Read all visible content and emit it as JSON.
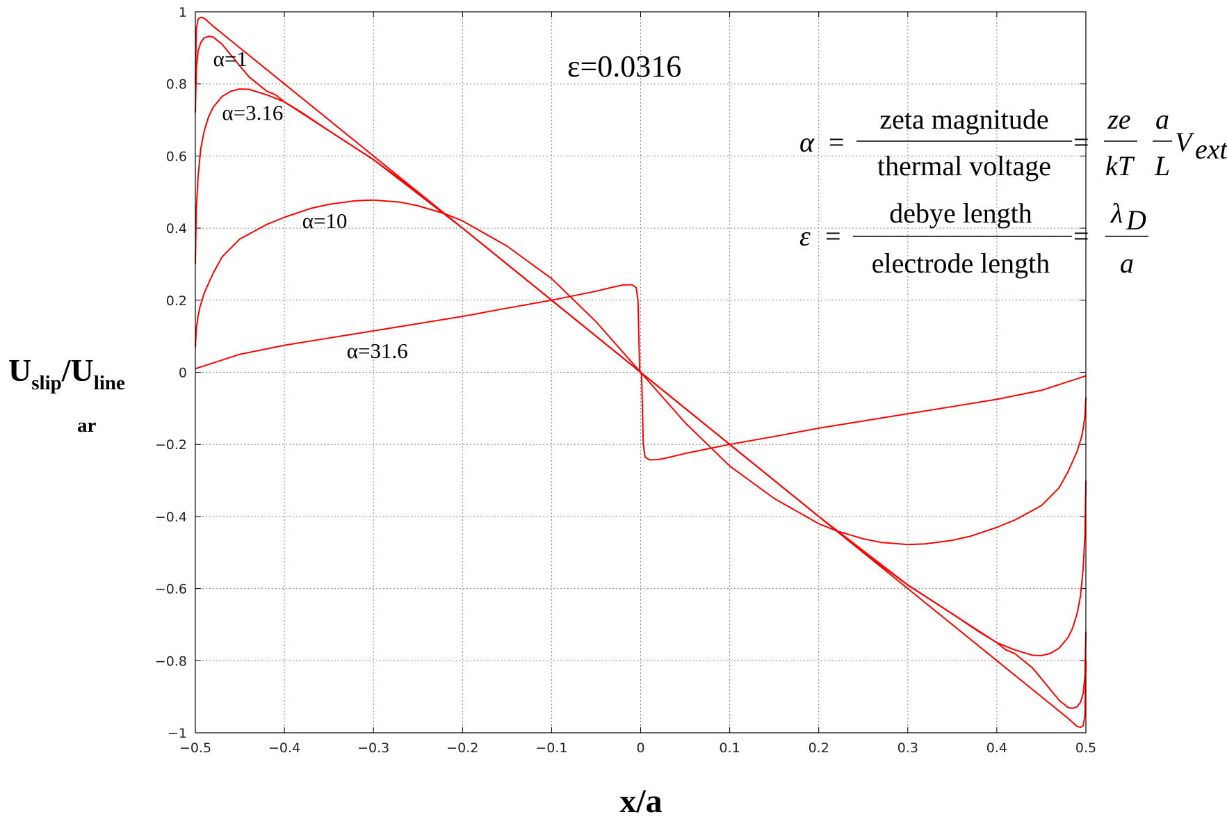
{
  "chart_data": {
    "type": "line",
    "title": "",
    "xlabel": "x/a",
    "ylabel_main": "U",
    "ylabel_sub1": "slip",
    "ylabel_sep": "/U",
    "ylabel_sub2": "line",
    "ylabel_sub3": "ar",
    "xlim": [
      -0.5,
      0.5
    ],
    "ylim": [
      -1,
      1
    ],
    "x_ticks": [
      "−0.5",
      "−0.4",
      "−0.3",
      "−0.2",
      "−0.1",
      "0",
      "0.1",
      "0.2",
      "0.3",
      "0.4",
      "0.5"
    ],
    "y_ticks": [
      "−1",
      "−0.8",
      "−0.6",
      "−0.4",
      "−0.2",
      "0",
      "0.2",
      "0.4",
      "0.6",
      "0.8",
      "1"
    ],
    "grid": true,
    "series_color": "#ff0000",
    "series": [
      {
        "label": "α=1",
        "label_x": -0.48,
        "label_y": 0.85,
        "x": [
          -0.5,
          -0.499,
          -0.497,
          -0.494,
          -0.49,
          -0.48,
          -0.46,
          -0.4,
          -0.3,
          -0.2,
          -0.1,
          0,
          0.1,
          0.2,
          0.3,
          0.4,
          0.46,
          0.48,
          0.49,
          0.494,
          0.497,
          0.499,
          0.5
        ],
        "y": [
          0.8,
          0.95,
          0.98,
          0.985,
          0.982,
          0.96,
          0.92,
          0.8,
          0.6,
          0.4,
          0.2,
          0,
          -0.2,
          -0.4,
          -0.6,
          -0.8,
          -0.92,
          -0.96,
          -0.982,
          -0.985,
          -0.98,
          -0.95,
          -0.8
        ]
      },
      {
        "label": "α=3.16",
        "label_x": -0.47,
        "label_y": 0.7,
        "x": [
          -0.5,
          -0.499,
          -0.497,
          -0.494,
          -0.49,
          -0.485,
          -0.48,
          -0.47,
          -0.46,
          -0.45,
          -0.44,
          -0.43,
          -0.42,
          -0.41,
          -0.4,
          -0.35,
          -0.3,
          -0.2,
          -0.1,
          0,
          0.1,
          0.2,
          0.3,
          0.35,
          0.4,
          0.41,
          0.42,
          0.43,
          0.44,
          0.45,
          0.46,
          0.47,
          0.48,
          0.485,
          0.49,
          0.494,
          0.497,
          0.499,
          0.5
        ],
        "y": [
          0.72,
          0.84,
          0.89,
          0.915,
          0.928,
          0.932,
          0.93,
          0.91,
          0.88,
          0.85,
          0.82,
          0.8,
          0.78,
          0.77,
          0.75,
          0.67,
          0.59,
          0.4,
          0.2,
          0,
          -0.2,
          -0.4,
          -0.59,
          -0.67,
          -0.75,
          -0.77,
          -0.78,
          -0.8,
          -0.82,
          -0.85,
          -0.88,
          -0.91,
          -0.93,
          -0.932,
          -0.928,
          -0.915,
          -0.89,
          -0.84,
          -0.72
        ]
      },
      {
        "label": "α=10",
        "label_x": -0.38,
        "label_y": 0.4,
        "x": [
          -0.5,
          -0.499,
          -0.497,
          -0.494,
          -0.49,
          -0.485,
          -0.48,
          -0.47,
          -0.46,
          -0.45,
          -0.44,
          -0.42,
          -0.4,
          -0.38,
          -0.35,
          -0.3,
          -0.25,
          -0.2,
          -0.15,
          -0.1,
          -0.05,
          0,
          0.05,
          0.1,
          0.15,
          0.2,
          0.25,
          0.3,
          0.35,
          0.38,
          0.4,
          0.42,
          0.44,
          0.45,
          0.46,
          0.47,
          0.48,
          0.485,
          0.49,
          0.494,
          0.497,
          0.499,
          0.5
        ],
        "y": [
          0.3,
          0.45,
          0.54,
          0.62,
          0.67,
          0.71,
          0.735,
          0.765,
          0.78,
          0.786,
          0.785,
          0.77,
          0.75,
          0.72,
          0.67,
          0.59,
          0.5,
          0.4,
          0.3,
          0.2,
          0.1,
          0,
          -0.1,
          -0.2,
          -0.3,
          -0.4,
          -0.5,
          -0.59,
          -0.67,
          -0.72,
          -0.75,
          -0.77,
          -0.785,
          -0.786,
          -0.78,
          -0.765,
          -0.735,
          -0.71,
          -0.67,
          -0.62,
          -0.54,
          -0.45,
          -0.3
        ]
      },
      {
        "label": "α=31.6",
        "label_x": -0.33,
        "label_y": 0.04,
        "x": [
          -0.5,
          -0.499,
          -0.497,
          -0.495,
          -0.49,
          -0.48,
          -0.47,
          -0.45,
          -0.42,
          -0.4,
          -0.37,
          -0.35,
          -0.32,
          -0.3,
          -0.27,
          -0.25,
          -0.22,
          -0.2,
          -0.15,
          -0.1,
          -0.05,
          0,
          0.05,
          0.1,
          0.15,
          0.2,
          0.22,
          0.25,
          0.27,
          0.3,
          0.32,
          0.35,
          0.37,
          0.4,
          0.42,
          0.45,
          0.47,
          0.48,
          0.49,
          0.495,
          0.497,
          0.499,
          0.5
        ],
        "y": [
          0.07,
          0.12,
          0.155,
          0.18,
          0.22,
          0.275,
          0.32,
          0.37,
          0.41,
          0.43,
          0.455,
          0.466,
          0.476,
          0.478,
          0.472,
          0.462,
          0.44,
          0.42,
          0.35,
          0.26,
          0.14,
          0,
          -0.14,
          -0.26,
          -0.35,
          -0.42,
          -0.44,
          -0.462,
          -0.472,
          -0.478,
          -0.476,
          -0.466,
          -0.455,
          -0.43,
          -0.41,
          -0.37,
          -0.32,
          -0.275,
          -0.22,
          -0.18,
          -0.155,
          -0.12,
          -0.07
        ]
      },
      {
        "label": "",
        "label_x": 0,
        "label_y": 0,
        "x": [
          -0.5,
          -0.45,
          -0.4,
          -0.35,
          -0.3,
          -0.25,
          -0.2,
          -0.15,
          -0.1,
          -0.05,
          -0.03,
          -0.02,
          -0.01,
          -0.005,
          -0.003,
          -0.002,
          -0.001,
          0,
          0.001,
          0.002,
          0.003,
          0.005,
          0.01,
          0.02,
          0.03,
          0.05,
          0.1,
          0.15,
          0.2,
          0.25,
          0.3,
          0.35,
          0.4,
          0.45,
          0.5
        ],
        "y": [
          0.01,
          0.05,
          0.075,
          0.095,
          0.115,
          0.135,
          0.155,
          0.178,
          0.2,
          0.225,
          0.237,
          0.242,
          0.243,
          0.235,
          0.2,
          0.1,
          0.0,
          0,
          0,
          -0.1,
          -0.2,
          -0.235,
          -0.243,
          -0.242,
          -0.237,
          -0.225,
          -0.2,
          -0.178,
          -0.155,
          -0.135,
          -0.115,
          -0.095,
          -0.075,
          -0.05,
          -0.01
        ]
      }
    ],
    "annotation_eps": "ε=0.0316",
    "eq1": {
      "lhs": "α",
      "num": "zeta magnitude",
      "den": "thermal voltage",
      "f1_num": "ze",
      "f1_den": "kT",
      "f2_num": "a",
      "f2_den": "L",
      "tail": "V",
      "tail_sub": "ext"
    },
    "eq2": {
      "lhs": "ε",
      "num": "debye length",
      "den": "electrode length",
      "f_num": "λ",
      "f_num_sub": "D",
      "f_den": "a"
    },
    "equals": "="
  }
}
